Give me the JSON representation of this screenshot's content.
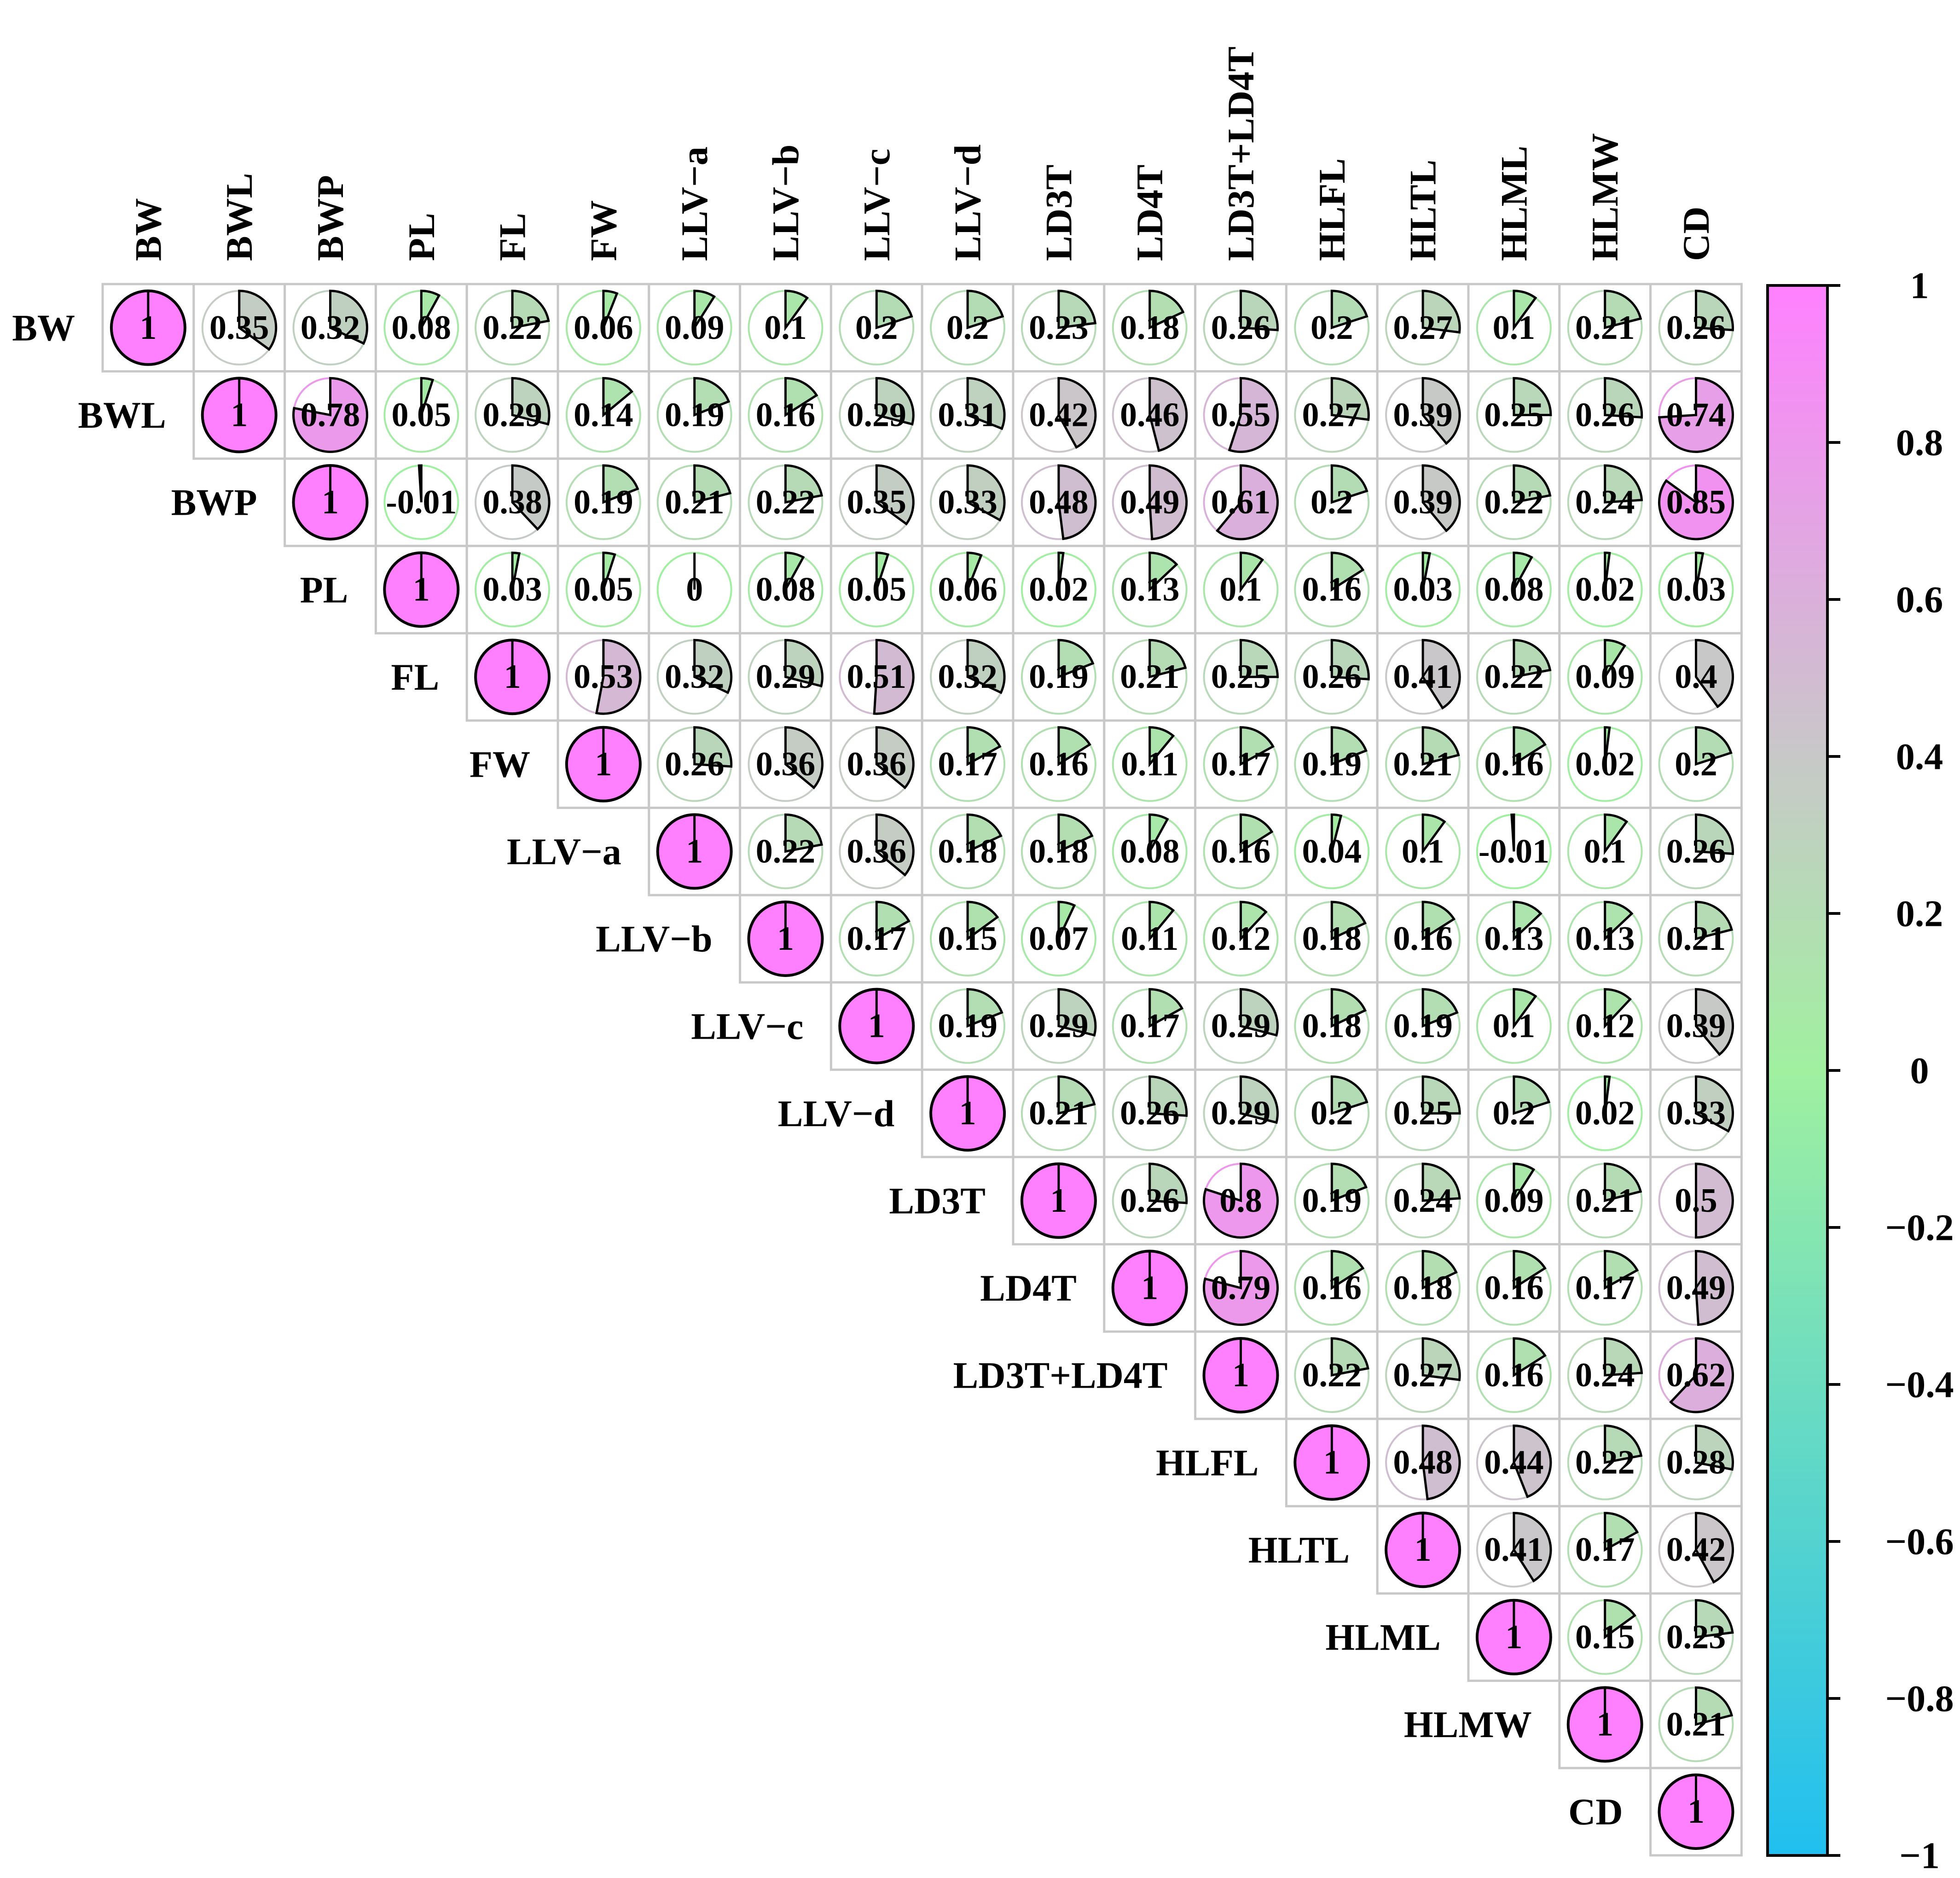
{
  "chart_data": {
    "type": "heatmap",
    "subtype": "correlation-pie-upper-triangle",
    "variables": [
      "BW",
      "BWL",
      "BWP",
      "PL",
      "FL",
      "FW",
      "LLV−a",
      "LLV−b",
      "LLV−c",
      "LLV−d",
      "LD3T",
      "LD4T",
      "LD3T+LD4T",
      "HLFL",
      "HLTL",
      "HLML",
      "HLMW",
      "CD"
    ],
    "matrix_upper": [
      [
        1,
        0.35,
        0.32,
        0.08,
        0.22,
        0.06,
        0.09,
        0.1,
        0.2,
        0.2,
        0.23,
        0.18,
        0.26,
        0.2,
        0.27,
        0.1,
        0.21,
        0.26
      ],
      [
        1,
        0.78,
        0.05,
        0.29,
        0.14,
        0.19,
        0.16,
        0.29,
        0.31,
        0.42,
        0.46,
        0.55,
        0.27,
        0.39,
        0.25,
        0.26,
        0.74
      ],
      [
        1,
        -0.01,
        0.38,
        0.19,
        0.21,
        0.22,
        0.35,
        0.33,
        0.48,
        0.49,
        0.61,
        0.2,
        0.39,
        0.22,
        0.24,
        0.85
      ],
      [
        1,
        0.03,
        0.05,
        0,
        0.08,
        0.05,
        0.06,
        0.02,
        0.13,
        0.1,
        0.16,
        0.03,
        0.08,
        0.02,
        0.03
      ],
      [
        1,
        0.53,
        0.32,
        0.29,
        0.51,
        0.32,
        0.19,
        0.21,
        0.25,
        0.26,
        0.41,
        0.22,
        0.09,
        0.4
      ],
      [
        1,
        0.26,
        0.36,
        0.36,
        0.17,
        0.16,
        0.11,
        0.17,
        0.19,
        0.21,
        0.16,
        0.02,
        0.2
      ],
      [
        1,
        0.22,
        0.36,
        0.18,
        0.18,
        0.08,
        0.16,
        0.04,
        0.1,
        -0.01,
        0.1,
        0.26
      ],
      [
        1,
        0.17,
        0.15,
        0.07,
        0.11,
        0.12,
        0.18,
        0.16,
        0.13,
        0.13,
        0.21
      ],
      [
        1,
        0.19,
        0.29,
        0.17,
        0.29,
        0.18,
        0.19,
        0.1,
        0.12,
        0.39
      ],
      [
        1,
        0.21,
        0.26,
        0.29,
        0.2,
        0.25,
        0.2,
        0.02,
        0.33
      ],
      [
        1,
        0.26,
        0.8,
        0.19,
        0.24,
        0.09,
        0.21,
        0.5
      ],
      [
        1,
        0.79,
        0.16,
        0.18,
        0.16,
        0.17,
        0.49
      ],
      [
        1,
        0.22,
        0.27,
        0.16,
        0.24,
        0.62
      ],
      [
        1,
        0.48,
        0.44,
        0.22,
        0.28
      ],
      [
        1,
        0.41,
        0.17,
        0.42
      ],
      [
        1,
        0.15,
        0.23
      ],
      [
        1,
        0.21
      ],
      [
        1
      ]
    ],
    "colorbar": {
      "range": [
        -1,
        1
      ],
      "ticks": [
        "1",
        "0.8",
        "0.6",
        "0.4",
        "0.2",
        "0",
        "−0.2",
        "−0.4",
        "−0.6",
        "−0.8",
        "−1"
      ],
      "colors": [
        "#ff80ff",
        "#c8c8c8",
        "#a0f0a0",
        "#20bff0"
      ]
    },
    "title": "",
    "xlabel": "",
    "ylabel": ""
  }
}
